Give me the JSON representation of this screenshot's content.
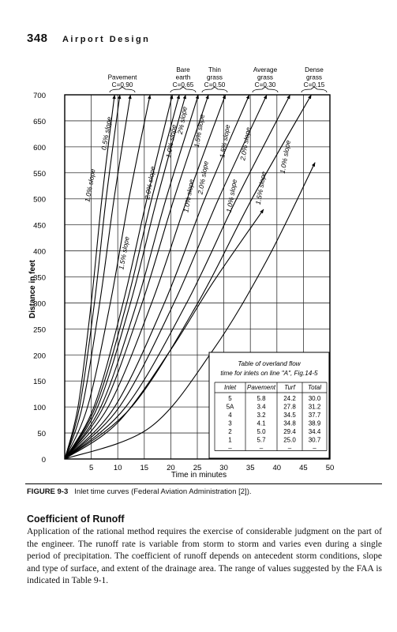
{
  "header": {
    "page_number": "348",
    "book_title": "Airport Design"
  },
  "figure": {
    "caption_label": "FIGURE 9-3",
    "caption_text": "Inlet time curves (Federal Aviation Administration [2]).",
    "top_labels": [
      {
        "lines": [
          "Pavement",
          "C=0.90"
        ]
      },
      {
        "lines": [
          "Bare",
          "earth",
          "C=0.65"
        ]
      },
      {
        "lines": [
          "Thin",
          "grass",
          "C=0.50"
        ]
      },
      {
        "lines": [
          "Average",
          "grass",
          "C=0.30"
        ]
      },
      {
        "lines": [
          "Dense",
          "grass",
          "C=0.15"
        ]
      }
    ],
    "slope_labels": [
      {
        "text": "1.0% slope",
        "x": 5.2,
        "y": 525
      },
      {
        "text": "0.5% slope",
        "x": 8.3,
        "y": 625
      },
      {
        "text": "1.5% slope",
        "x": 11.6,
        "y": 395
      },
      {
        "text": "2.0% slope",
        "x": 16.5,
        "y": 530
      },
      {
        "text": "1.0% slope",
        "x": 20.5,
        "y": 610
      },
      {
        "text": "2% slope",
        "x": 22.6,
        "y": 650
      },
      {
        "text": "1.0% slope",
        "x": 23.8,
        "y": 505
      },
      {
        "text": "1.5% slope",
        "x": 25.8,
        "y": 630
      },
      {
        "text": "2.0% slope",
        "x": 26.5,
        "y": 540
      },
      {
        "text": "1.5% slope",
        "x": 30.6,
        "y": 610
      },
      {
        "text": "1.0% slope",
        "x": 31.9,
        "y": 505
      },
      {
        "text": "2.0% slope",
        "x": 34.5,
        "y": 605
      },
      {
        "text": "1.5% slope",
        "x": 37.4,
        "y": 520
      },
      {
        "text": "1.0% slope",
        "x": 42.0,
        "y": 580
      }
    ],
    "inset_table": {
      "title_line1": "Table of overland flow",
      "title_line2": "time for inlets on line \"A\", Fig.14-5",
      "headers": [
        "Inlet",
        "Pavement",
        "Turf",
        "Total"
      ],
      "rows": [
        [
          "5",
          "5.8",
          "24.2",
          "30.0"
        ],
        [
          "5A",
          "3.4",
          "27.8",
          "31.2"
        ],
        [
          "4",
          "3.2",
          "34.5",
          "37.7"
        ],
        [
          "3",
          "4.1",
          "34.8",
          "38.9"
        ],
        [
          "2",
          "5.0",
          "29.4",
          "34.4"
        ],
        [
          "1",
          "5.7",
          "25.0",
          "30.7"
        ],
        [
          "–",
          "–",
          "–",
          "–"
        ]
      ]
    }
  },
  "chart_data": {
    "type": "line",
    "xlabel": "Time in minutes",
    "ylabel": "Distance in feet",
    "xlim": [
      0,
      50
    ],
    "ylim": [
      0,
      700
    ],
    "x_ticks": [
      5,
      10,
      15,
      20,
      25,
      30,
      35,
      40,
      45,
      50
    ],
    "y_ticks": [
      0,
      50,
      100,
      150,
      200,
      250,
      300,
      350,
      400,
      450,
      500,
      550,
      600,
      650,
      700
    ],
    "grid": true,
    "series": [
      {
        "x": [
          0,
          2.5,
          5,
          7,
          9.4
        ],
        "y": [
          0,
          100,
          300,
          500,
          700
        ]
      },
      {
        "x": [
          0,
          2.8,
          5.6,
          7.8,
          10.4
        ],
        "y": [
          0,
          100,
          300,
          500,
          700
        ]
      },
      {
        "x": [
          0,
          3.3,
          6.6,
          9.3,
          12.4
        ],
        "y": [
          0,
          100,
          300,
          500,
          700
        ]
      },
      {
        "x": [
          0,
          4.3,
          8.6,
          12.1,
          16.1
        ],
        "y": [
          0,
          100,
          300,
          500,
          700
        ]
      },
      {
        "x": [
          0,
          5.5,
          11,
          15.5,
          20.3
        ],
        "y": [
          0,
          100,
          300,
          500,
          700
        ]
      },
      {
        "x": [
          0,
          5.8,
          11.7,
          16.4,
          21.6
        ],
        "y": [
          0,
          100,
          300,
          500,
          700
        ]
      },
      {
        "x": [
          0,
          6.2,
          12.4,
          17.4,
          22.8
        ],
        "y": [
          0,
          100,
          300,
          500,
          700
        ]
      },
      {
        "x": [
          0,
          6.8,
          13.6,
          19.1,
          25.2
        ],
        "y": [
          0,
          100,
          300,
          500,
          700
        ]
      },
      {
        "x": [
          0,
          7.3,
          14.6,
          20.6,
          27.1
        ],
        "y": [
          0,
          100,
          300,
          500,
          700
        ]
      },
      {
        "x": [
          0,
          8.2,
          16.4,
          23.1,
          30.3
        ],
        "y": [
          0,
          100,
          300,
          500,
          700
        ]
      },
      {
        "x": [
          0,
          9.4,
          18.8,
          26.4,
          34.8
        ],
        "y": [
          0,
          100,
          300,
          500,
          700
        ]
      },
      {
        "x": [
          0,
          10.3,
          20.6,
          29,
          38.1
        ],
        "y": [
          0,
          100,
          300,
          500,
          700
        ]
      },
      {
        "x": [
          0,
          11.5,
          23,
          32.4,
          42.5
        ],
        "y": [
          0,
          100,
          300,
          500,
          700
        ]
      },
      {
        "x": [
          0,
          12.6,
          25.1,
          35.3,
          46.5
        ],
        "y": [
          0,
          100,
          300,
          500,
          700
        ]
      },
      {
        "x": [
          0,
          10,
          20,
          28,
          37.5
        ],
        "y": [
          0,
          70,
          210,
          340,
          480
        ]
      },
      {
        "x": [
          0,
          16,
          28,
          38,
          47.2
        ],
        "y": [
          0,
          60,
          210,
          380,
          570
        ]
      }
    ]
  },
  "section": {
    "heading": "Coefficient of Runoff",
    "paragraph": "Application of the rational method requires the exercise of considerable judgment on the part of the engineer. The runoff rate is variable from storm to storm and varies even during a single period of precipitation. The coefficient of runoff depends on antecedent storm conditions, slope and type of surface, and extent of the drainage area. The range of values suggested by the FAA is indicated in Table 9-1."
  }
}
